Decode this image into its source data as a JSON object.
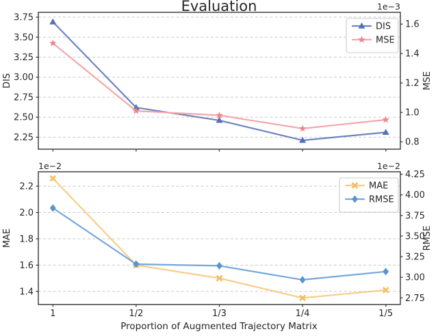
{
  "figure": {
    "title": "Evaluation",
    "xlabel": "Proportion of Augmented Trajectory Matrix",
    "background": "#ffffff",
    "grid_color": "#c9c9c9",
    "spine_color": "#333333",
    "text_color": "#262626",
    "legend_border_color": "#cccccc"
  },
  "chart_data": [
    {
      "type": "line",
      "title": "Evaluation",
      "x_categories": [
        "1",
        "1/2",
        "1/3",
        "1/4",
        "1/5"
      ],
      "show_x_tick_labels": false,
      "left_axis": {
        "label": "DIS",
        "tick_labels": [
          "3.75",
          "3.50",
          "3.25",
          "3.00",
          "2.75",
          "2.50",
          "2.25"
        ],
        "tick_values": [
          3.75,
          3.5,
          3.25,
          3.0,
          2.75,
          2.5,
          2.25
        ],
        "ylim": [
          2.1,
          3.81
        ],
        "grid": true
      },
      "right_axis": {
        "label": "MSE",
        "offset_text": "1e−3",
        "tick_labels": [
          "1.6",
          "1.4",
          "1.2",
          "1.0",
          "0.8"
        ],
        "tick_values": [
          1.6,
          1.4,
          1.2,
          1.0,
          0.8
        ],
        "ylim": [
          0.75,
          1.68
        ],
        "grid": false
      },
      "series": [
        {
          "name": "DIS",
          "axis": "left",
          "marker": "triangle",
          "line_color": "#6d84c1",
          "marker_color": "#5570b5",
          "values": [
            3.69,
            2.62,
            2.46,
            2.21,
            2.31
          ]
        },
        {
          "name": "MSE",
          "axis": "right",
          "marker": "star",
          "line_color": "#f5a6aa",
          "marker_color": "#ed8490",
          "values": [
            1.47,
            1.01,
            0.98,
            0.89,
            0.95
          ]
        }
      ],
      "legend": {
        "position": "upper-right",
        "entries": [
          "DIS",
          "MSE"
        ]
      }
    },
    {
      "type": "line",
      "xlabel": "Proportion of Augmented Trajectory Matrix",
      "x_categories": [
        "1",
        "1/2",
        "1/3",
        "1/4",
        "1/5"
      ],
      "show_x_tick_labels": true,
      "left_axis": {
        "label": "MAE",
        "offset_text": "1e−2",
        "tick_labels": [
          "2.2",
          "2.0",
          "1.8",
          "1.6",
          "1.4"
        ],
        "tick_values": [
          2.2,
          2.0,
          1.8,
          1.6,
          1.4
        ],
        "ylim": [
          1.3,
          2.31
        ],
        "grid": true
      },
      "right_axis": {
        "label": "RMSE",
        "offset_text": "1e−2",
        "tick_labels": [
          "4.25",
          "4.00",
          "3.75",
          "3.50",
          "3.25",
          "3.00",
          "2.75"
        ],
        "tick_values": [
          4.25,
          4.0,
          3.75,
          3.5,
          3.25,
          3.0,
          2.75
        ],
        "ylim": [
          2.67,
          4.28
        ],
        "grid": false
      },
      "series": [
        {
          "name": "MAE",
          "axis": "left",
          "marker": "x",
          "line_color": "#f7cd86",
          "marker_color": "#f0c063",
          "values": [
            2.26,
            1.6,
            1.5,
            1.35,
            1.41
          ]
        },
        {
          "name": "RMSE",
          "axis": "right",
          "marker": "diamond",
          "line_color": "#74a7da",
          "marker_color": "#5795ce",
          "values": [
            3.84,
            3.16,
            3.14,
            2.97,
            3.07
          ]
        }
      ],
      "legend": {
        "position": "upper-right",
        "entries": [
          "MAE",
          "RMSE"
        ]
      }
    }
  ]
}
